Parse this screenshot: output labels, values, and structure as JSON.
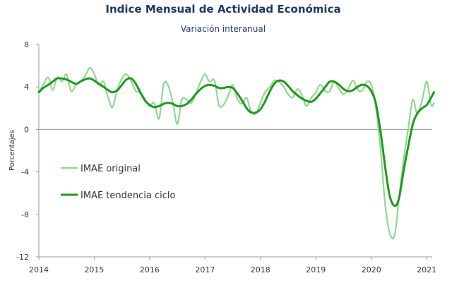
{
  "chart_data": {
    "type": "line",
    "title": "Indice Mensual de  Actividad Económica",
    "subtitle": "Variación interanual",
    "xlabel": "",
    "ylabel": "Porcentajes",
    "ylim": [
      -12,
      8
    ],
    "yticks": [
      "8",
      "4",
      "0",
      "-4",
      "-8",
      "-12"
    ],
    "xlim": [
      2014,
      2021.1
    ],
    "xticks": [
      "2014",
      "2015",
      "2016",
      "2017",
      "2018",
      "2019",
      "2020",
      "2021"
    ],
    "grid": false,
    "zero_line": true,
    "legend_position": "center-left",
    "colors": {
      "original": "#90d890",
      "trend": "#1e9a1e",
      "title": "#1f3864"
    },
    "series": [
      {
        "name": "IMAE original",
        "key": "original",
        "points": [
          [
            2014.0,
            3.5
          ],
          [
            2014.08,
            4.2
          ],
          [
            2014.17,
            4.9
          ],
          [
            2014.25,
            3.7
          ],
          [
            2014.33,
            4.9
          ],
          [
            2014.42,
            4.5
          ],
          [
            2014.5,
            5.2
          ],
          [
            2014.58,
            3.6
          ],
          [
            2014.67,
            4.2
          ],
          [
            2014.75,
            4.5
          ],
          [
            2014.83,
            5.0
          ],
          [
            2014.92,
            5.8
          ],
          [
            2015.0,
            5.2
          ],
          [
            2015.08,
            4.2
          ],
          [
            2015.17,
            4.5
          ],
          [
            2015.25,
            3.0
          ],
          [
            2015.33,
            2.1
          ],
          [
            2015.42,
            3.8
          ],
          [
            2015.5,
            4.8
          ],
          [
            2015.58,
            5.2
          ],
          [
            2015.67,
            4.5
          ],
          [
            2015.75,
            3.6
          ],
          [
            2015.83,
            3.5
          ],
          [
            2015.92,
            2.8
          ],
          [
            2016.0,
            2.2
          ],
          [
            2016.08,
            2.5
          ],
          [
            2016.17,
            1.0
          ],
          [
            2016.25,
            4.2
          ],
          [
            2016.33,
            4.2
          ],
          [
            2016.42,
            2.5
          ],
          [
            2016.5,
            0.5
          ],
          [
            2016.58,
            2.8
          ],
          [
            2016.67,
            2.8
          ],
          [
            2016.75,
            2.5
          ],
          [
            2016.83,
            3.3
          ],
          [
            2016.92,
            4.5
          ],
          [
            2017.0,
            5.2
          ],
          [
            2017.08,
            4.5
          ],
          [
            2017.17,
            4.6
          ],
          [
            2017.25,
            2.3
          ],
          [
            2017.33,
            2.3
          ],
          [
            2017.42,
            3.2
          ],
          [
            2017.5,
            4.2
          ],
          [
            2017.58,
            2.9
          ],
          [
            2017.67,
            2.4
          ],
          [
            2017.75,
            3.0
          ],
          [
            2017.83,
            1.7
          ],
          [
            2017.92,
            1.5
          ],
          [
            2018.0,
            2.5
          ],
          [
            2018.08,
            3.5
          ],
          [
            2018.17,
            4.0
          ],
          [
            2018.25,
            4.6
          ],
          [
            2018.33,
            4.5
          ],
          [
            2018.42,
            4.0
          ],
          [
            2018.5,
            3.3
          ],
          [
            2018.58,
            3.0
          ],
          [
            2018.67,
            3.8
          ],
          [
            2018.75,
            3.2
          ],
          [
            2018.83,
            2.2
          ],
          [
            2018.92,
            3.0
          ],
          [
            2019.0,
            3.5
          ],
          [
            2019.08,
            4.2
          ],
          [
            2019.17,
            3.6
          ],
          [
            2019.25,
            3.6
          ],
          [
            2019.33,
            4.5
          ],
          [
            2019.42,
            3.8
          ],
          [
            2019.5,
            3.3
          ],
          [
            2019.58,
            3.8
          ],
          [
            2019.67,
            4.6
          ],
          [
            2019.75,
            3.8
          ],
          [
            2019.83,
            3.6
          ],
          [
            2019.92,
            4.5
          ],
          [
            2020.0,
            4.2
          ],
          [
            2020.08,
            2.2
          ],
          [
            2020.17,
            -2.0
          ],
          [
            2020.25,
            -7.0
          ],
          [
            2020.33,
            -9.7
          ],
          [
            2020.42,
            -10.0
          ],
          [
            2020.5,
            -6.5
          ],
          [
            2020.58,
            -3.0
          ],
          [
            2020.67,
            0.2
          ],
          [
            2020.75,
            2.8
          ],
          [
            2020.83,
            1.5
          ],
          [
            2020.92,
            2.8
          ],
          [
            2021.0,
            4.5
          ],
          [
            2021.08,
            2.3
          ],
          [
            2021.13,
            2.5
          ]
        ]
      },
      {
        "name": "IMAE tendencia ciclo",
        "key": "trend",
        "points": [
          [
            2014.0,
            3.5
          ],
          [
            2014.08,
            3.9
          ],
          [
            2014.17,
            4.2
          ],
          [
            2014.25,
            4.5
          ],
          [
            2014.33,
            4.8
          ],
          [
            2014.42,
            4.8
          ],
          [
            2014.5,
            4.7
          ],
          [
            2014.58,
            4.5
          ],
          [
            2014.67,
            4.3
          ],
          [
            2014.75,
            4.5
          ],
          [
            2014.83,
            4.7
          ],
          [
            2014.92,
            4.8
          ],
          [
            2015.0,
            4.6
          ],
          [
            2015.08,
            4.3
          ],
          [
            2015.17,
            4.0
          ],
          [
            2015.25,
            3.7
          ],
          [
            2015.33,
            3.5
          ],
          [
            2015.42,
            3.7
          ],
          [
            2015.5,
            4.2
          ],
          [
            2015.58,
            4.7
          ],
          [
            2015.67,
            4.8
          ],
          [
            2015.75,
            4.3
          ],
          [
            2015.83,
            3.5
          ],
          [
            2015.92,
            2.7
          ],
          [
            2016.0,
            2.3
          ],
          [
            2016.08,
            2.1
          ],
          [
            2016.17,
            2.2
          ],
          [
            2016.25,
            2.4
          ],
          [
            2016.33,
            2.5
          ],
          [
            2016.42,
            2.4
          ],
          [
            2016.5,
            2.2
          ],
          [
            2016.58,
            2.2
          ],
          [
            2016.67,
            2.4
          ],
          [
            2016.75,
            2.8
          ],
          [
            2016.83,
            3.3
          ],
          [
            2016.92,
            3.8
          ],
          [
            2017.0,
            4.1
          ],
          [
            2017.08,
            4.2
          ],
          [
            2017.17,
            4.1
          ],
          [
            2017.25,
            3.9
          ],
          [
            2017.33,
            3.9
          ],
          [
            2017.42,
            4.0
          ],
          [
            2017.5,
            3.9
          ],
          [
            2017.58,
            3.4
          ],
          [
            2017.67,
            2.7
          ],
          [
            2017.75,
            2.0
          ],
          [
            2017.83,
            1.6
          ],
          [
            2017.92,
            1.6
          ],
          [
            2018.0,
            1.9
          ],
          [
            2018.08,
            2.6
          ],
          [
            2018.17,
            3.6
          ],
          [
            2018.25,
            4.3
          ],
          [
            2018.33,
            4.6
          ],
          [
            2018.42,
            4.5
          ],
          [
            2018.5,
            4.1
          ],
          [
            2018.58,
            3.6
          ],
          [
            2018.67,
            3.2
          ],
          [
            2018.75,
            2.9
          ],
          [
            2018.83,
            2.7
          ],
          [
            2018.92,
            2.6
          ],
          [
            2019.0,
            2.9
          ],
          [
            2019.08,
            3.4
          ],
          [
            2019.17,
            4.0
          ],
          [
            2019.25,
            4.5
          ],
          [
            2019.33,
            4.5
          ],
          [
            2019.42,
            4.2
          ],
          [
            2019.5,
            3.8
          ],
          [
            2019.58,
            3.6
          ],
          [
            2019.67,
            3.7
          ],
          [
            2019.75,
            4.0
          ],
          [
            2019.83,
            4.2
          ],
          [
            2019.92,
            4.1
          ],
          [
            2020.0,
            3.6
          ],
          [
            2020.08,
            2.5
          ],
          [
            2020.17,
            -0.3
          ],
          [
            2020.25,
            -3.5
          ],
          [
            2020.33,
            -6.2
          ],
          [
            2020.42,
            -7.2
          ],
          [
            2020.5,
            -6.5
          ],
          [
            2020.58,
            -4.0
          ],
          [
            2020.67,
            -1.5
          ],
          [
            2020.75,
            0.5
          ],
          [
            2020.83,
            1.5
          ],
          [
            2020.92,
            2.0
          ],
          [
            2021.0,
            2.3
          ],
          [
            2021.08,
            3.0
          ],
          [
            2021.13,
            3.5
          ]
        ]
      }
    ]
  }
}
